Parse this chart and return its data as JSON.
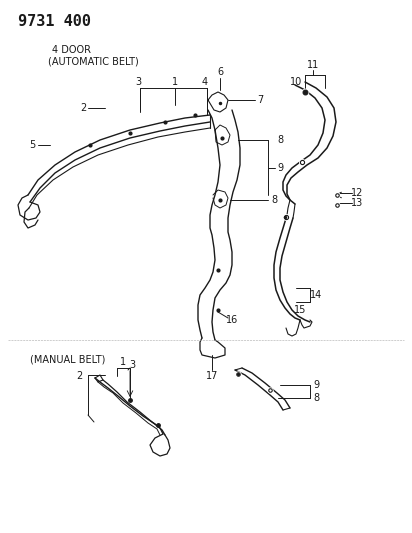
{
  "bg_color": "#ffffff",
  "line_color": "#1a1a1a",
  "title": "9731 400",
  "sub1": "4 DOOR",
  "sub2": "(AUTOMATIC BELT)",
  "sub3": "(MANUAL BELT)"
}
